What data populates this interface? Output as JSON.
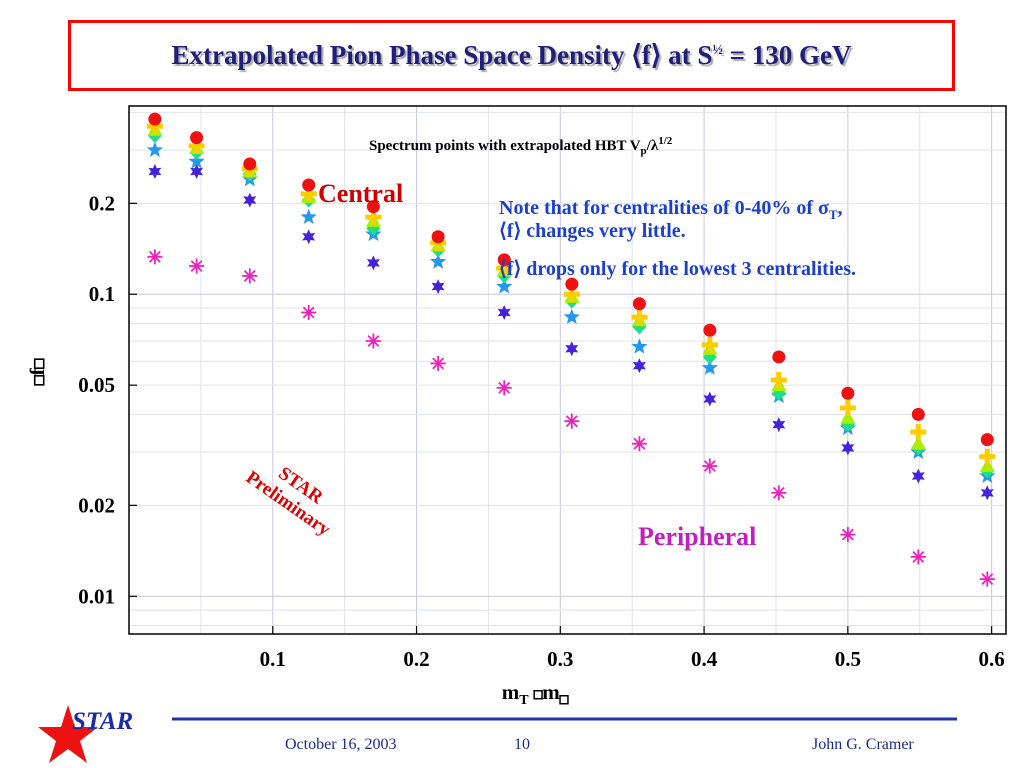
{
  "header": {
    "title_main": "Extrapolated Pion Phase Space Density ⟨f⟩ at S",
    "title_sup": "½",
    "title_tail": " = 130 GeV"
  },
  "chart_data": {
    "type": "scatter",
    "title": "Spectrum points with extrapolated HBT V",
    "title_sub": "p",
    "title_mid": "/λ",
    "title_sup": "1/2",
    "xlabel": "m",
    "xlabel_sub1": "T",
    "xlabel_mid": "m",
    "ylabel": "f",
    "y_scale": "log",
    "xlim": [
      0.0,
      0.61
    ],
    "ylim": [
      0.0075,
      0.42
    ],
    "x_ticks": [
      0.1,
      0.2,
      0.3,
      0.4,
      0.5,
      0.6
    ],
    "x_tick_labels": [
      "0.1",
      "0.2",
      "0.3",
      "0.4",
      "0.5",
      "0.6"
    ],
    "y_ticks": [
      0.01,
      0.02,
      0.05,
      0.1,
      0.2
    ],
    "y_tick_labels": [
      "0.01",
      "0.02",
      "0.05",
      "0.1",
      "0.2"
    ],
    "grid": true,
    "x": [
      0.018,
      0.047,
      0.084,
      0.125,
      0.17,
      0.215,
      0.261,
      0.308,
      0.355,
      0.404,
      0.452,
      0.5,
      0.549,
      0.597
    ],
    "series": [
      {
        "marker": "circle",
        "color": "#ee1111",
        "values": [
          0.38,
          0.33,
          0.27,
          0.23,
          0.195,
          0.155,
          0.13,
          0.108,
          0.093,
          0.076,
          0.062,
          0.047,
          0.04,
          0.033
        ]
      },
      {
        "marker": "cross",
        "color": "#ffcc00",
        "values": [
          0.36,
          0.31,
          0.26,
          0.215,
          0.18,
          0.148,
          0.122,
          0.1,
          0.084,
          0.068,
          0.052,
          0.042,
          0.035,
          0.029
        ]
      },
      {
        "marker": "triangle",
        "color": "#aaee00",
        "values": [
          0.35,
          0.305,
          0.255,
          0.21,
          0.175,
          0.145,
          0.12,
          0.098,
          0.082,
          0.066,
          0.05,
          0.039,
          0.032,
          0.027
        ]
      },
      {
        "marker": "diamond",
        "color": "#22dd88",
        "values": [
          0.335,
          0.295,
          0.25,
          0.205,
          0.165,
          0.14,
          0.115,
          0.095,
          0.078,
          0.062,
          0.047,
          0.037,
          0.031,
          0.026
        ]
      },
      {
        "marker": "star",
        "color": "#2299ee",
        "values": [
          0.3,
          0.275,
          0.24,
          0.18,
          0.158,
          0.128,
          0.106,
          0.084,
          0.067,
          0.057,
          0.046,
          0.036,
          0.03,
          0.025
        ]
      },
      {
        "marker": "hexstar",
        "color": "#4422dd",
        "values": [
          0.255,
          0.255,
          0.205,
          0.155,
          0.127,
          0.106,
          0.087,
          0.066,
          0.058,
          0.045,
          0.037,
          0.031,
          0.025,
          0.022
        ]
      },
      {
        "marker": "asterisk",
        "color": "#ee22bb",
        "values": [
          0.133,
          0.124,
          0.115,
          0.087,
          0.07,
          0.059,
          0.049,
          0.038,
          0.032,
          0.027,
          0.022,
          0.016,
          0.0135,
          0.0114
        ]
      }
    ],
    "annotations": {
      "central": "Central",
      "peripheral": "Peripheral",
      "note_line1_a": "Note that for centralities of 0-40% of σ",
      "note_line1_sub": "T",
      "note_line1_b": ",",
      "note_line2": "⟨f⟩ changes very little.",
      "note_line3": "⟨f⟩ drops only for the lowest 3 centralities.",
      "prelim_line1": "STAR",
      "prelim_line2": "Preliminary"
    }
  },
  "footer": {
    "date": "October 16, 2003",
    "page": "10",
    "author": "John G. Cramer",
    "logo_text": "STAR",
    "logo_star_color": "#ee1111",
    "line_color": "#2233aa"
  }
}
